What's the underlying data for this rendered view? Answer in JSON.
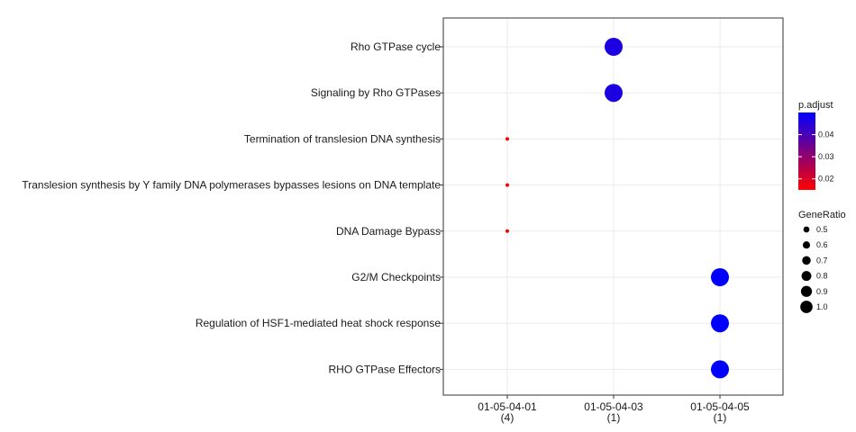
{
  "chart_data": {
    "type": "scatter",
    "title": "",
    "xlabel": "",
    "ylabel": "",
    "x_categories": [
      {
        "label": "01-05-04-01",
        "count": "(4)"
      },
      {
        "label": "01-05-04-03",
        "count": "(1)"
      },
      {
        "label": "01-05-04-05",
        "count": "(1)"
      }
    ],
    "y_categories": [
      "Rho GTPase cycle",
      "Signaling by Rho GTPases",
      "Termination of translesion DNA synthesis",
      "Translesion synthesis by Y family DNA polymerases bypasses lesions on DNA template",
      "DNA Damage Bypass",
      "G2/M Checkpoints",
      "Regulation of HSF1-mediated heat shock response",
      "RHO GTPase Effectors"
    ],
    "points": [
      {
        "x": "01-05-04-03",
        "y": "Rho GTPase cycle",
        "gene_ratio": 1.0,
        "p_adjust": 0.046
      },
      {
        "x": "01-05-04-03",
        "y": "Signaling by Rho GTPases",
        "gene_ratio": 1.0,
        "p_adjust": 0.046
      },
      {
        "x": "01-05-04-01",
        "y": "Termination of translesion DNA synthesis",
        "gene_ratio": 0.25,
        "p_adjust": 0.015
      },
      {
        "x": "01-05-04-01",
        "y": "Translesion synthesis by Y family DNA polymerases bypasses lesions on DNA template",
        "gene_ratio": 0.25,
        "p_adjust": 0.015
      },
      {
        "x": "01-05-04-01",
        "y": "DNA Damage Bypass",
        "gene_ratio": 0.25,
        "p_adjust": 0.015
      },
      {
        "x": "01-05-04-05",
        "y": "G2/M Checkpoints",
        "gene_ratio": 1.0,
        "p_adjust": 0.05
      },
      {
        "x": "01-05-04-05",
        "y": "Regulation of HSF1-mediated heat shock response",
        "gene_ratio": 1.0,
        "p_adjust": 0.05
      },
      {
        "x": "01-05-04-05",
        "y": "RHO GTPase Effectors",
        "gene_ratio": 1.0,
        "p_adjust": 0.05
      }
    ],
    "color_legend": {
      "title": "p.adjust",
      "ticks": [
        "0.04",
        "0.03",
        "0.02"
      ],
      "tick_values": [
        0.04,
        0.03,
        0.02
      ],
      "range": [
        0.015,
        0.05
      ],
      "low_color": "#ff0000",
      "high_color": "#0000ff"
    },
    "size_legend": {
      "title": "GeneRatio",
      "ticks": [
        "0.5",
        "0.6",
        "0.7",
        "0.8",
        "0.9",
        "1.0"
      ],
      "tick_values": [
        0.5,
        0.6,
        0.7,
        0.8,
        0.9,
        1.0
      ]
    },
    "legend_position": "right",
    "grid": true
  }
}
